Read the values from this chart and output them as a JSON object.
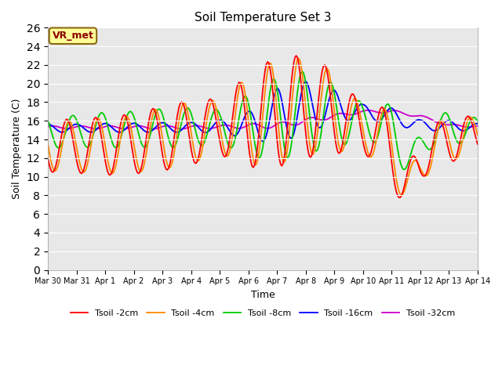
{
  "title": "Soil Temperature Set 3",
  "xlabel": "Time",
  "ylabel": "Soil Temperature (C)",
  "ylim": [
    0,
    26
  ],
  "yticks": [
    0,
    2,
    4,
    6,
    8,
    10,
    12,
    14,
    16,
    18,
    20,
    22,
    24,
    26
  ],
  "xtick_labels": [
    "Mar 30",
    "Mar 31",
    "Apr 1",
    "Apr 2",
    "Apr 3",
    "Apr 4",
    "Apr 5",
    "Apr 6",
    "Apr 7",
    "Apr 8",
    "Apr 9",
    "Apr 10",
    "Apr 11",
    "Apr 12",
    "Apr 13",
    "Apr 14"
  ],
  "colors": {
    "2cm": "#ff0000",
    "4cm": "#ff8800",
    "8cm": "#00cc00",
    "16cm": "#0000ff",
    "32cm": "#cc00cc"
  },
  "legend_labels": [
    "Tsoil -2cm",
    "Tsoil -4cm",
    "Tsoil -8cm",
    "Tsoil -16cm",
    "Tsoil -32cm"
  ],
  "bg_color": "#e8e8e8",
  "annotation_text": "VR_met",
  "annotation_bg": "#ffff99",
  "annotation_border": "#8b6914"
}
